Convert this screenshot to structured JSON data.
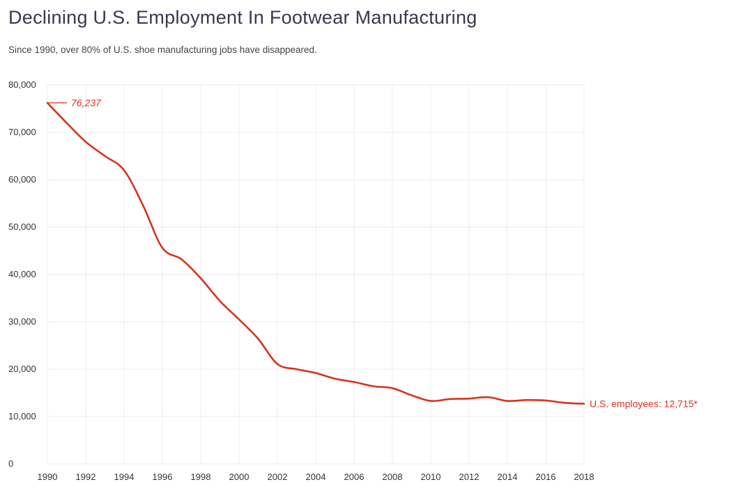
{
  "colors": {
    "line": "#d8321e",
    "title": "#3d3550",
    "grid": "#ececec"
  },
  "chart_data": {
    "type": "line",
    "title": "Declining U.S. Employment In Footwear Manufacturing",
    "subtitle": "Since 1990, over 80% of U.S. shoe manufacturing jobs have disappeared.",
    "xlabel": "",
    "ylabel": "",
    "xlim": [
      1990,
      2018
    ],
    "ylim": [
      0,
      80000
    ],
    "grid": true,
    "x_ticks": [
      1990,
      1992,
      1994,
      1996,
      1998,
      2000,
      2002,
      2004,
      2006,
      2008,
      2010,
      2012,
      2014,
      2016,
      2018
    ],
    "x_tick_labels": [
      "1990",
      "1992",
      "1994",
      "1996",
      "1998",
      "2000",
      "2002",
      "2004",
      "2006",
      "2008",
      "2010",
      "2012",
      "2014",
      "2016",
      "2018"
    ],
    "y_ticks": [
      0,
      10000,
      20000,
      30000,
      40000,
      50000,
      60000,
      70000,
      80000
    ],
    "y_tick_labels": [
      "0",
      "10,000",
      "20,000",
      "30,000",
      "40,000",
      "50,000",
      "60,000",
      "70,000",
      "80,000"
    ],
    "series": [
      {
        "name": "U.S. employees",
        "x": [
          1990,
          1991,
          1992,
          1993,
          1994,
          1995,
          1996,
          1997,
          1998,
          1999,
          2000,
          2001,
          2002,
          2003,
          2004,
          2005,
          2006,
          2007,
          2008,
          2009,
          2010,
          2011,
          2012,
          2013,
          2014,
          2015,
          2016,
          2017,
          2018
        ],
        "values": [
          76237,
          72000,
          68000,
          65000,
          62000,
          54500,
          45600,
          43200,
          39200,
          34400,
          30500,
          26400,
          21100,
          20000,
          19200,
          18000,
          17300,
          16400,
          16000,
          14500,
          13300,
          13700,
          13800,
          14100,
          13300,
          13500,
          13400,
          12900,
          12715
        ]
      }
    ],
    "annotations": [
      {
        "text": "76,237",
        "x": 1990,
        "y": 76237,
        "anchor": "start-label"
      },
      {
        "text": "U.S. employees: 12,715*",
        "x": 2018,
        "y": 12715,
        "anchor": "end-label"
      }
    ]
  }
}
